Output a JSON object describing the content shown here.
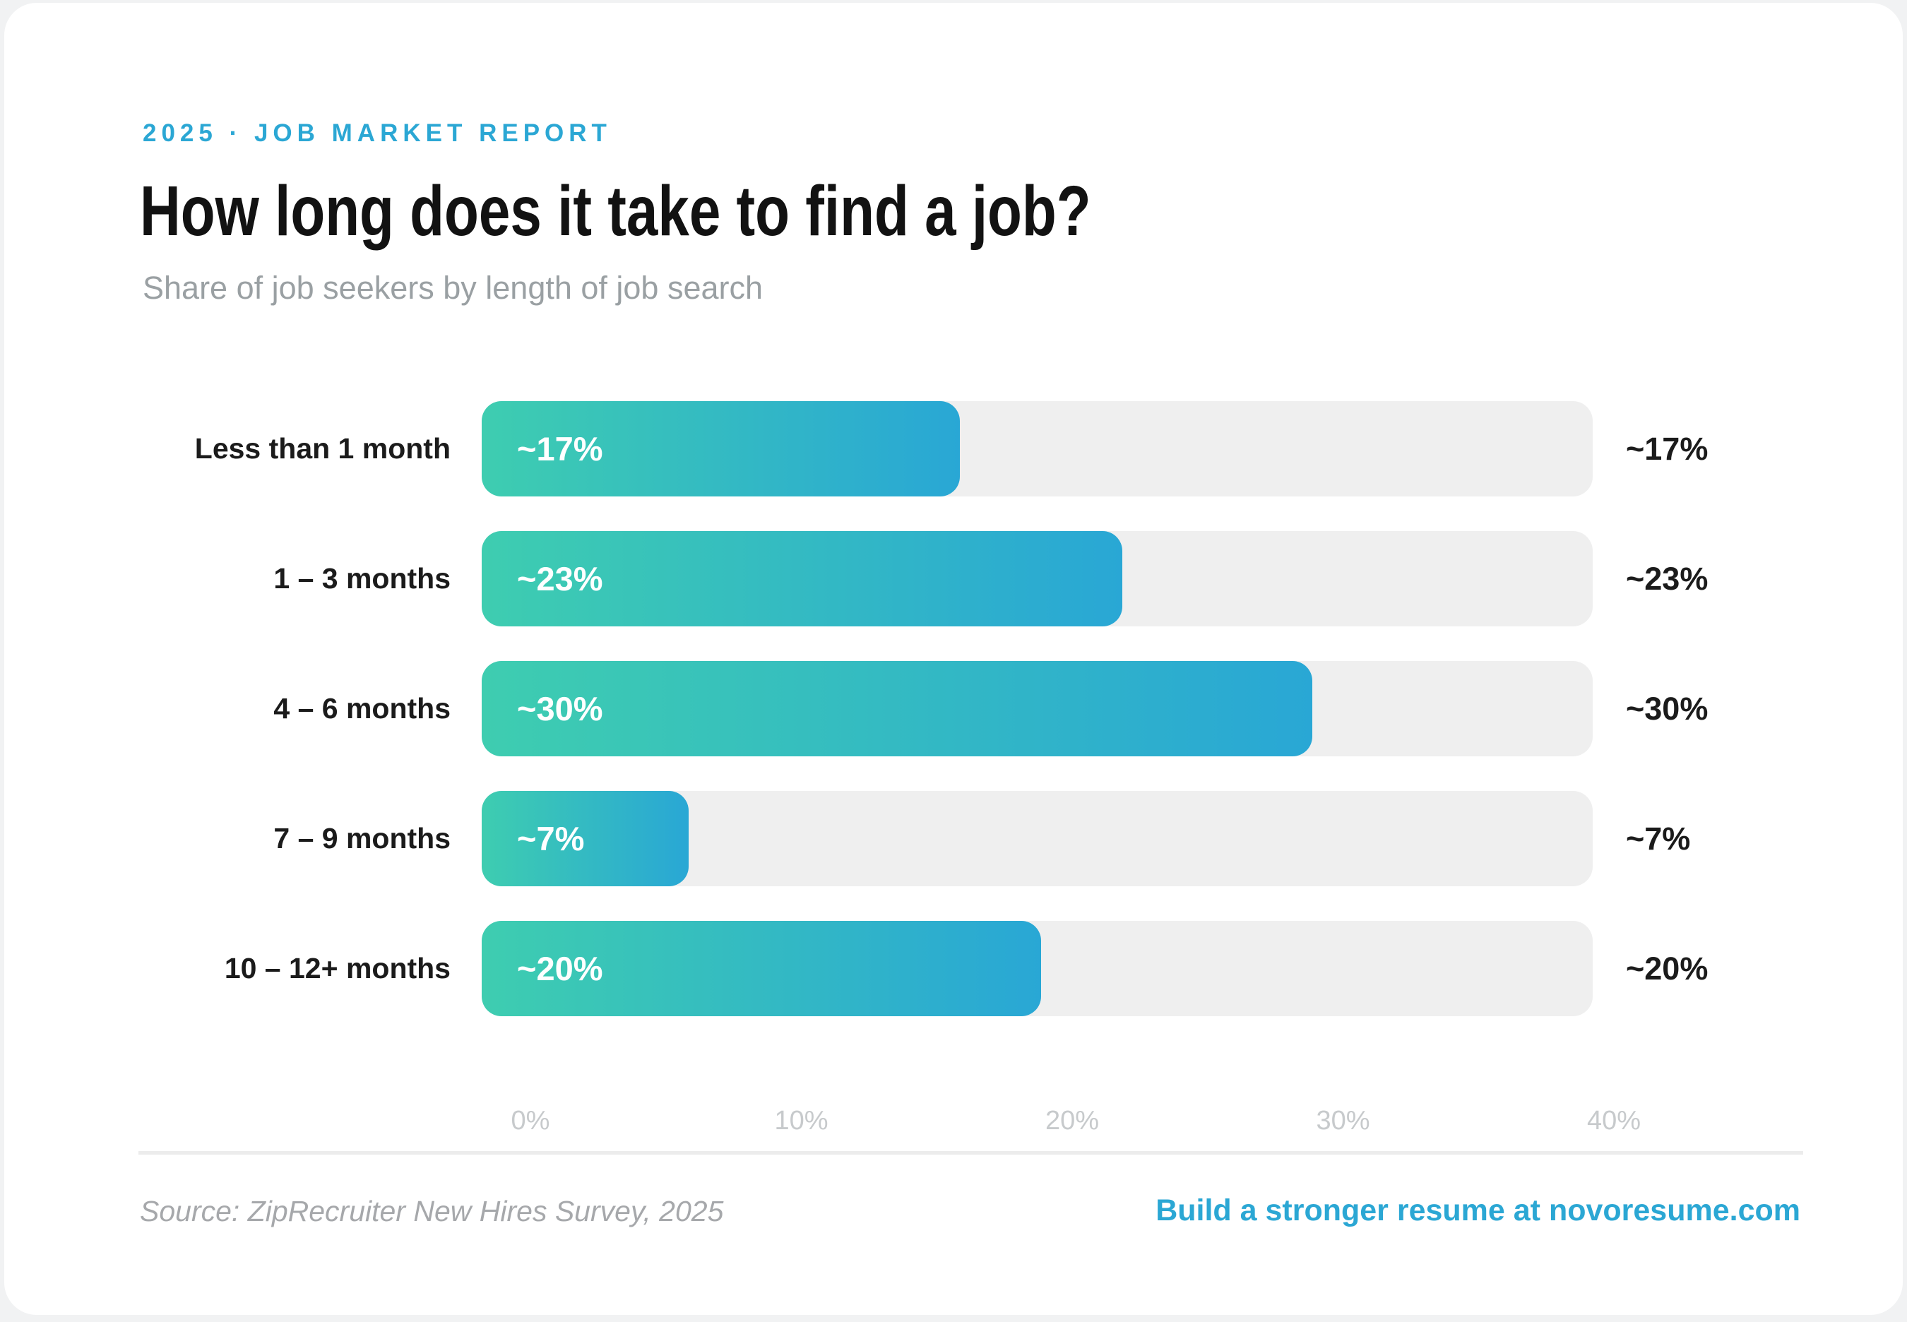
{
  "page": {
    "eyebrow": "2025 · JOB MARKET REPORT",
    "title": "How long does it take to find a job?",
    "subtitle": "Share of job seekers by length of job search"
  },
  "chart_data": {
    "type": "bar",
    "orientation": "horizontal",
    "title": "How long does it take to find a job?",
    "subtitle": "Share of job seekers by length of job search",
    "categories": [
      "Less than 1 month",
      "1 – 3 months",
      "4 – 6 months",
      "7 – 9 months",
      "10 – 12+ months"
    ],
    "values": [
      17,
      23,
      30,
      7,
      20
    ],
    "bar_labels": [
      "~17%",
      "~23%",
      "~30%",
      "~7%",
      "~20%"
    ],
    "value_labels": [
      "~17%",
      "~23%",
      "~30%",
      "~7%",
      "~20%"
    ],
    "x_ticks": [
      0,
      10,
      20,
      30,
      40
    ],
    "x_tick_labels": [
      "0%",
      "10%",
      "20%",
      "30%",
      "40%"
    ],
    "xlim": [
      0,
      41
    ],
    "grid": false,
    "legend": "none",
    "colors": {
      "bar_gradient_start": "#3ecdb0",
      "bar_gradient_end": "#29a7d5",
      "track": "#efefef",
      "accent_blue": "#2ba7d4"
    }
  },
  "footer": {
    "source": "Source: ZipRecruiter New Hires Survey, 2025",
    "cta": "Build a stronger resume at novoresume.com"
  }
}
